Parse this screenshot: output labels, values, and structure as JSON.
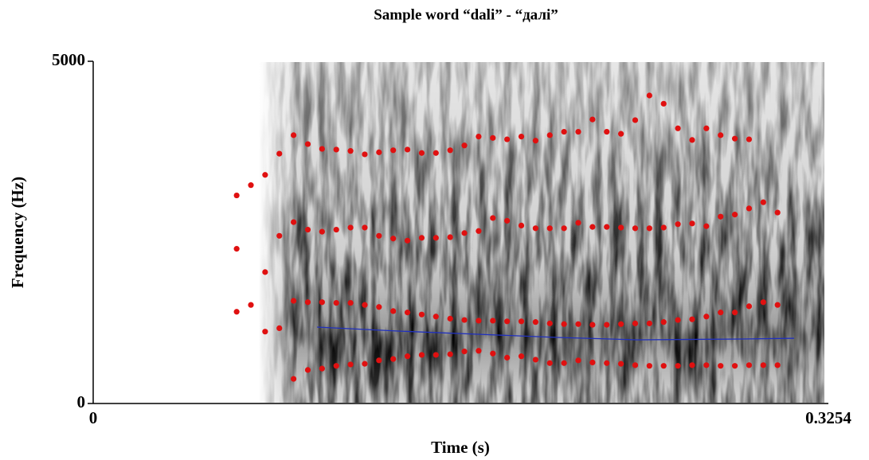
{
  "chart_data": {
    "type": "scatter",
    "title": "Sample word “dali” - “далі”",
    "x_label": "Time (s)",
    "y_label": "Frequency (Hz)",
    "xlim": [
      0,
      0.3254
    ],
    "xticks": [
      0,
      0.3254
    ],
    "ylim": [
      0,
      5000
    ],
    "yticks": [
      0,
      5000
    ],
    "x": [
      0.0635,
      0.0698,
      0.0761,
      0.0824,
      0.0887,
      0.095,
      0.1013,
      0.1076,
      0.1139,
      0.1202,
      0.1265,
      0.1328,
      0.1391,
      0.1454,
      0.1517,
      0.158,
      0.1643,
      0.1706,
      0.1769,
      0.1832,
      0.1895,
      0.1958,
      0.2021,
      0.2084,
      0.2147,
      0.221,
      0.2273,
      0.2336,
      0.2399,
      0.2462,
      0.2525,
      0.2588,
      0.2651,
      0.2714,
      0.2777,
      0.284,
      0.2903,
      0.2966,
      0.3029
    ],
    "series": [
      {
        "color": "#e01010",
        "values": [
          1340,
          1440,
          1050,
          1100,
          360,
          490,
          510,
          550,
          570,
          580,
          630,
          650,
          690,
          710,
          710,
          720,
          760,
          770,
          730,
          670,
          690,
          640,
          590,
          590,
          630,
          600,
          590,
          580,
          560,
          550,
          550,
          550,
          560,
          560,
          550,
          550,
          560,
          560,
          560
        ]
      },
      {
        "color": "#e01010",
        "values": [
          2260,
          null,
          1920,
          2450,
          1500,
          1480,
          1480,
          1470,
          1470,
          1440,
          1410,
          1350,
          1330,
          1300,
          1270,
          1240,
          1220,
          1210,
          1210,
          1200,
          1200,
          1190,
          1170,
          1160,
          1160,
          1150,
          1150,
          1160,
          1170,
          1170,
          1190,
          1220,
          1230,
          1270,
          1330,
          1330,
          1420,
          1480,
          1440
        ]
      },
      {
        "color": "#e01010",
        "values": [
          3040,
          3190,
          3340,
          3650,
          2650,
          2540,
          2510,
          2540,
          2570,
          2570,
          2450,
          2410,
          2380,
          2420,
          2420,
          2430,
          2490,
          2520,
          2710,
          2670,
          2600,
          2560,
          2560,
          2560,
          2640,
          2580,
          2580,
          2570,
          2560,
          2560,
          2570,
          2620,
          2630,
          2590,
          2730,
          2760,
          2850,
          2940,
          2790
        ]
      },
      {
        "color": "#e01010",
        "values": [
          null,
          null,
          null,
          null,
          3920,
          3790,
          3720,
          3710,
          3690,
          3640,
          3670,
          3700,
          3710,
          3660,
          3660,
          3700,
          3770,
          3900,
          3880,
          3860,
          3900,
          3840,
          3920,
          3970,
          3970,
          4150,
          3970,
          3940,
          4140,
          4500,
          4380,
          4020,
          3850,
          4020,
          3920,
          3870,
          3860,
          null,
          null
        ]
      }
    ],
    "pitch": {
      "color": "#2030c0",
      "x": [
        0.0991,
        0.135,
        0.1703,
        0.2055,
        0.2408,
        0.2866,
        0.3102
      ],
      "values": [
        1116,
        1058,
        1012,
        965,
        930,
        942,
        953
      ]
    }
  }
}
